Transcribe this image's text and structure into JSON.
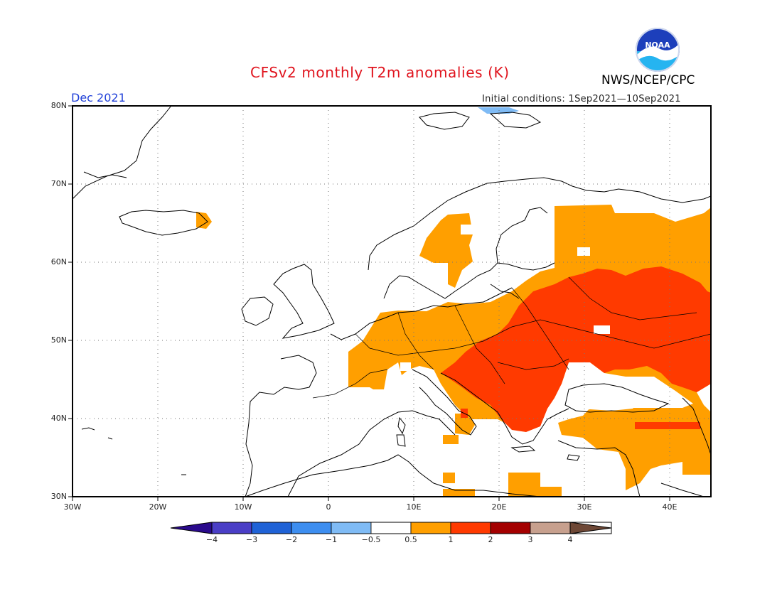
{
  "header": {
    "title": "CFSv2 monthly T2m anomalies (K)",
    "org": "NWS/NCEP/CPC",
    "month": "Dec 2021",
    "initial_conditions": "Initial conditions: 1Sep2021—10Sep2021"
  },
  "logo": {
    "text": "NOAA",
    "colors": {
      "top": "#1d3fbb",
      "bottom": "#25b4f0"
    }
  },
  "axes": {
    "lat_labels": [
      "80N",
      "70N",
      "60N",
      "50N",
      "40N",
      "30N"
    ],
    "lon_labels": [
      "30W",
      "20W",
      "10W",
      "0",
      "10E",
      "20E",
      "30E",
      "40E"
    ]
  },
  "colorbar": {
    "tick_labels": [
      "−4",
      "−3",
      "−2",
      "−1",
      "−0.5",
      "0.5",
      "1",
      "2",
      "3",
      "4"
    ],
    "colors": [
      "#2a0a8c",
      "#4a3ec6",
      "#1f62d6",
      "#3d8ef0",
      "#7fbbf5",
      "#ffffff",
      "#ff9f00",
      "#ff3a00",
      "#a40000",
      "#c7a08e",
      "#6e4836"
    ]
  },
  "legend_colors": {
    "anomaly_0_5_to_1": "#ff9f00",
    "anomaly_1_to_2": "#ff3a00",
    "negative_small": "#7fbbf5"
  }
}
